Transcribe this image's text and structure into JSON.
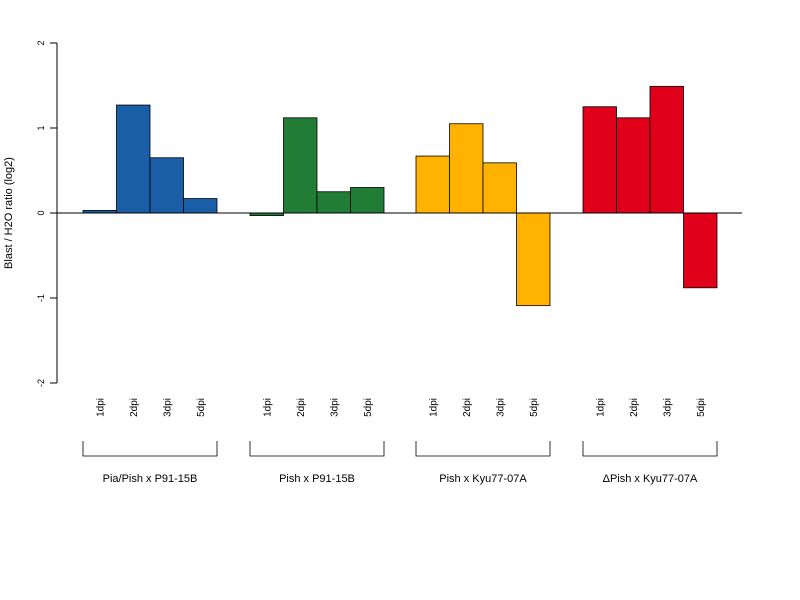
{
  "chart_data": {
    "type": "bar",
    "title": "",
    "ylabel": "Blast / H2O ratio (log2)",
    "ylim": [
      -2,
      2
    ],
    "yticks": [
      -2,
      -1,
      0,
      1,
      2
    ],
    "grid": false,
    "legend": "none",
    "categories": [
      "1dpi",
      "2dpi",
      "3dpi",
      "5dpi"
    ],
    "groups": [
      {
        "name": "Pia/Pish x P91-15B",
        "color": "#1b5ea8",
        "values": [
          0.03,
          1.27,
          0.65,
          0.17
        ]
      },
      {
        "name": "Pish x P91-15B",
        "color": "#217d36",
        "values": [
          -0.03,
          1.12,
          0.25,
          0.3
        ]
      },
      {
        "name": "Pish x Kyu77-07A",
        "color": "#ffb300",
        "values": [
          0.67,
          1.05,
          0.59,
          -1.09
        ]
      },
      {
        "name": "ΔPish x Kyu77-07A",
        "color": "#e0001a",
        "values": [
          1.25,
          1.12,
          1.49,
          -0.88
        ]
      }
    ]
  }
}
